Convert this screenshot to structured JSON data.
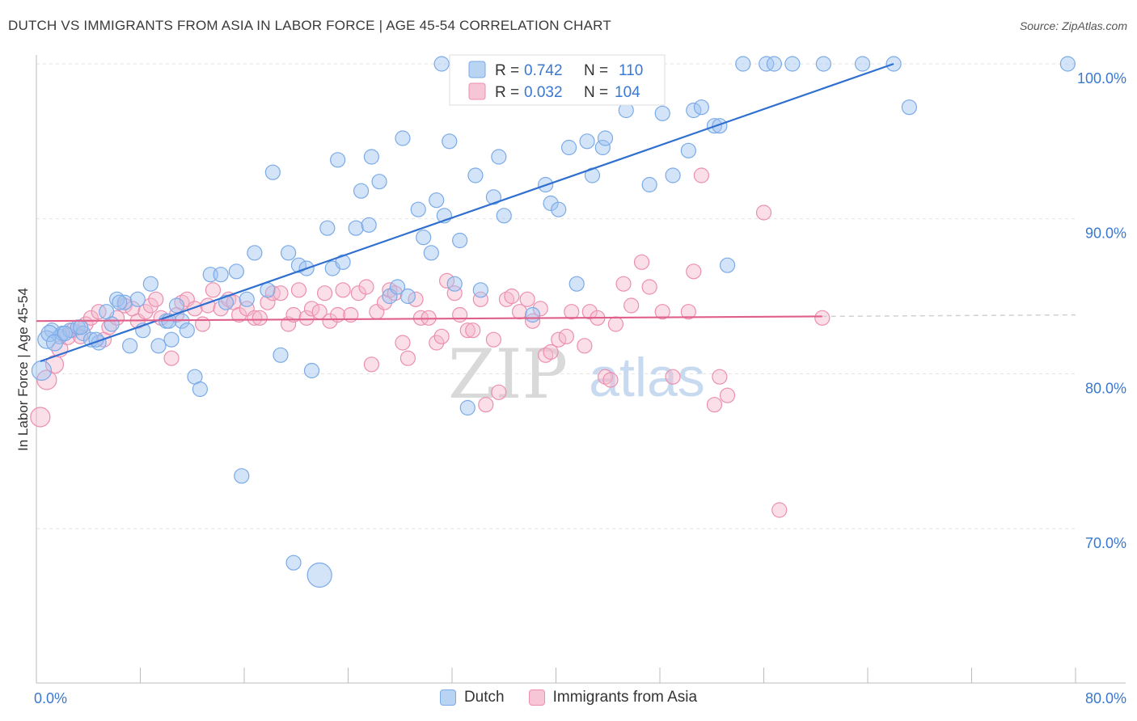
{
  "title": "DUTCH VS IMMIGRANTS FROM ASIA IN LABOR FORCE | AGE 45-54 CORRELATION CHART",
  "source": "Source: ZipAtlas.com",
  "chart_data": {
    "type": "scatter",
    "title": "DUTCH VS IMMIGRANTS FROM ASIA IN LABOR FORCE | AGE 45-54 CORRELATION CHART",
    "xlabel": "",
    "ylabel": "In Labor Force | Age 45-54",
    "xlim": [
      0,
      80
    ],
    "ylim": [
      60,
      102
    ],
    "x_tick_labels": [
      "0.0%",
      "80.0%"
    ],
    "y_ticks": [
      70,
      80,
      90,
      100
    ],
    "y_tick_labels": [
      "70.0%",
      "80.0%",
      "90.0%",
      "100.0%"
    ],
    "watermark": {
      "zip": "ZIP",
      "atlas": "atlas"
    },
    "legend": [
      {
        "name": "Dutch",
        "r_label": "R =",
        "r_value": "0.742",
        "n_label": "N =",
        "n_value": "110",
        "color": "#7aaae8",
        "fill": "#b9d3f3"
      },
      {
        "name": "Immigrants from Asia",
        "r_label": "R =",
        "r_value": "0.032",
        "n_label": "N =",
        "n_value": "104",
        "color": "#ec8fae",
        "fill": "#f7c6d6"
      }
    ],
    "series": [
      {
        "name": "Dutch",
        "color": "#7aaae8",
        "trend": {
          "x": [
            0.3,
            66.0
          ],
          "y": [
            80.8,
            100.0
          ],
          "color": "#2f6fd0"
        },
        "points": [
          [
            1.2,
            82.8
          ],
          [
            1.8,
            82.4
          ],
          [
            2.0,
            82.6
          ],
          [
            2.6,
            82.8
          ],
          [
            3.2,
            83.0
          ],
          [
            3.6,
            82.6
          ],
          [
            4.2,
            82.2
          ],
          [
            4.8,
            82.0
          ],
          [
            5.4,
            84.0
          ],
          [
            5.8,
            83.2
          ],
          [
            6.2,
            84.8
          ],
          [
            6.8,
            84.6
          ],
          [
            7.2,
            81.8
          ],
          [
            7.8,
            84.8
          ],
          [
            8.2,
            82.8
          ],
          [
            8.8,
            85.8
          ],
          [
            9.4,
            81.8
          ],
          [
            10.0,
            83.4
          ],
          [
            10.4,
            82.2
          ],
          [
            10.8,
            84.4
          ],
          [
            11.2,
            83.4
          ],
          [
            11.6,
            82.8
          ],
          [
            12.2,
            79.8
          ],
          [
            12.6,
            79.0
          ],
          [
            13.4,
            86.4
          ],
          [
            14.2,
            86.4
          ],
          [
            14.6,
            84.6
          ],
          [
            15.4,
            86.6
          ],
          [
            16.2,
            84.8
          ],
          [
            16.8,
            87.8
          ],
          [
            17.8,
            85.4
          ],
          [
            18.2,
            93.0
          ],
          [
            18.8,
            81.2
          ],
          [
            19.4,
            87.8
          ],
          [
            20.2,
            87.0
          ],
          [
            20.8,
            86.8
          ],
          [
            21.2,
            80.2
          ],
          [
            22.4,
            89.4
          ],
          [
            22.8,
            86.8
          ],
          [
            23.2,
            93.8
          ],
          [
            23.6,
            87.2
          ],
          [
            24.6,
            89.4
          ],
          [
            25.0,
            91.8
          ],
          [
            25.6,
            89.6
          ],
          [
            25.8,
            94.0
          ],
          [
            26.4,
            92.4
          ],
          [
            27.2,
            85.0
          ],
          [
            27.8,
            85.6
          ],
          [
            28.2,
            95.2
          ],
          [
            28.6,
            85.0
          ],
          [
            29.4,
            90.6
          ],
          [
            29.8,
            88.8
          ],
          [
            30.4,
            87.8
          ],
          [
            30.8,
            91.2
          ],
          [
            31.2,
            100.0
          ],
          [
            31.4,
            90.2
          ],
          [
            31.8,
            95.0
          ],
          [
            32.2,
            85.8
          ],
          [
            32.6,
            88.6
          ],
          [
            33.2,
            77.8
          ],
          [
            33.8,
            92.8
          ],
          [
            34.2,
            85.4
          ],
          [
            35.2,
            91.4
          ],
          [
            35.6,
            94.0
          ],
          [
            36.0,
            90.2
          ],
          [
            37.2,
            99.0
          ],
          [
            37.8,
            100.0
          ],
          [
            38.2,
            83.8
          ],
          [
            39.2,
            92.2
          ],
          [
            39.6,
            91.0
          ],
          [
            40.2,
            90.6
          ],
          [
            41.0,
            94.6
          ],
          [
            41.6,
            85.8
          ],
          [
            42.4,
            95.0
          ],
          [
            42.8,
            92.8
          ],
          [
            43.6,
            94.6
          ],
          [
            43.8,
            95.2
          ],
          [
            44.4,
            100.0
          ],
          [
            45.4,
            97.0
          ],
          [
            46.2,
            99.4
          ],
          [
            47.2,
            92.2
          ],
          [
            48.2,
            96.8
          ],
          [
            49.0,
            92.8
          ],
          [
            50.2,
            94.4
          ],
          [
            50.6,
            97.0
          ],
          [
            51.2,
            97.2
          ],
          [
            52.2,
            96.0
          ],
          [
            52.6,
            96.0
          ],
          [
            53.2,
            87.0
          ],
          [
            54.4,
            100.0
          ],
          [
            56.2,
            100.0
          ],
          [
            56.8,
            100.0
          ],
          [
            58.2,
            100.0
          ],
          [
            60.6,
            100.0
          ],
          [
            63.6,
            100.0
          ],
          [
            66.0,
            100.0
          ],
          [
            67.2,
            97.2
          ],
          [
            79.4,
            100.0
          ],
          [
            15.8,
            73.4
          ],
          [
            19.8,
            67.8
          ],
          [
            21.8,
            67.0
          ],
          [
            0.4,
            80.2
          ],
          [
            0.8,
            82.2
          ],
          [
            1.0,
            82.6
          ],
          [
            1.4,
            82.0
          ],
          [
            2.2,
            82.6
          ],
          [
            3.4,
            83.0
          ],
          [
            4.6,
            82.2
          ],
          [
            6.4,
            84.6
          ],
          [
            10.2,
            83.4
          ]
        ],
        "sizes": [
          24,
          18,
          16,
          14,
          14,
          12,
          12,
          12,
          12,
          12
        ]
      },
      {
        "name": "Immigrants from Asia",
        "color": "#ec8fae",
        "trend": {
          "x": [
            0.0,
            60.5
          ],
          "y": [
            83.4,
            83.7
          ],
          "dash_to": 80.0,
          "color": "#e0608c"
        },
        "points": [
          [
            0.3,
            77.2
          ],
          [
            0.8,
            79.6
          ],
          [
            1.4,
            80.6
          ],
          [
            1.8,
            81.6
          ],
          [
            2.4,
            82.4
          ],
          [
            2.8,
            82.8
          ],
          [
            3.4,
            82.4
          ],
          [
            3.8,
            83.2
          ],
          [
            4.2,
            83.6
          ],
          [
            4.8,
            84.0
          ],
          [
            5.2,
            82.2
          ],
          [
            5.6,
            83.0
          ],
          [
            6.2,
            83.6
          ],
          [
            6.8,
            84.4
          ],
          [
            7.4,
            84.2
          ],
          [
            7.8,
            83.4
          ],
          [
            8.4,
            84.0
          ],
          [
            8.8,
            84.4
          ],
          [
            9.2,
            84.8
          ],
          [
            9.6,
            83.6
          ],
          [
            10.4,
            81.0
          ],
          [
            10.8,
            83.8
          ],
          [
            11.2,
            84.6
          ],
          [
            11.6,
            84.8
          ],
          [
            12.2,
            84.2
          ],
          [
            12.8,
            83.2
          ],
          [
            13.2,
            84.4
          ],
          [
            13.6,
            85.4
          ],
          [
            14.2,
            84.2
          ],
          [
            14.8,
            84.8
          ],
          [
            15.2,
            84.6
          ],
          [
            15.6,
            83.8
          ],
          [
            16.2,
            84.2
          ],
          [
            16.8,
            83.6
          ],
          [
            17.2,
            83.6
          ],
          [
            17.8,
            84.6
          ],
          [
            18.2,
            85.2
          ],
          [
            18.8,
            85.2
          ],
          [
            19.4,
            83.2
          ],
          [
            19.8,
            83.8
          ],
          [
            20.2,
            85.4
          ],
          [
            20.8,
            83.6
          ],
          [
            21.2,
            84.2
          ],
          [
            21.8,
            84.0
          ],
          [
            22.2,
            85.2
          ],
          [
            22.6,
            83.4
          ],
          [
            23.2,
            83.8
          ],
          [
            23.6,
            85.4
          ],
          [
            24.2,
            83.8
          ],
          [
            24.8,
            85.2
          ],
          [
            25.4,
            85.6
          ],
          [
            25.8,
            80.6
          ],
          [
            26.2,
            84.0
          ],
          [
            26.8,
            84.6
          ],
          [
            27.2,
            85.4
          ],
          [
            27.6,
            85.2
          ],
          [
            28.2,
            82.0
          ],
          [
            28.6,
            81.0
          ],
          [
            29.2,
            84.8
          ],
          [
            29.6,
            83.6
          ],
          [
            30.2,
            83.6
          ],
          [
            30.8,
            82.0
          ],
          [
            31.2,
            82.4
          ],
          [
            31.6,
            86.0
          ],
          [
            32.2,
            85.2
          ],
          [
            32.6,
            83.8
          ],
          [
            33.2,
            82.8
          ],
          [
            33.6,
            82.8
          ],
          [
            34.2,
            84.8
          ],
          [
            34.6,
            78.0
          ],
          [
            35.2,
            82.2
          ],
          [
            35.6,
            78.8
          ],
          [
            36.2,
            84.8
          ],
          [
            36.6,
            85.0
          ],
          [
            37.2,
            84.0
          ],
          [
            37.8,
            84.8
          ],
          [
            38.2,
            83.4
          ],
          [
            38.8,
            84.2
          ],
          [
            39.2,
            81.2
          ],
          [
            39.6,
            81.4
          ],
          [
            40.2,
            82.2
          ],
          [
            40.8,
            82.4
          ],
          [
            41.2,
            84.0
          ],
          [
            42.2,
            81.8
          ],
          [
            42.6,
            84.0
          ],
          [
            43.2,
            83.6
          ],
          [
            43.8,
            79.8
          ],
          [
            44.2,
            79.6
          ],
          [
            44.6,
            83.2
          ],
          [
            45.2,
            85.8
          ],
          [
            45.8,
            84.4
          ],
          [
            46.6,
            87.2
          ],
          [
            47.2,
            85.6
          ],
          [
            48.2,
            84.0
          ],
          [
            49.0,
            79.8
          ],
          [
            50.2,
            84.0
          ],
          [
            50.6,
            86.6
          ],
          [
            51.2,
            92.8
          ],
          [
            52.2,
            78.0
          ],
          [
            52.6,
            79.8
          ],
          [
            53.2,
            78.6
          ],
          [
            56.0,
            90.4
          ],
          [
            57.2,
            71.2
          ],
          [
            60.5,
            83.6
          ]
        ],
        "sizes": [
          18,
          18,
          16,
          14,
          14
        ]
      }
    ]
  }
}
